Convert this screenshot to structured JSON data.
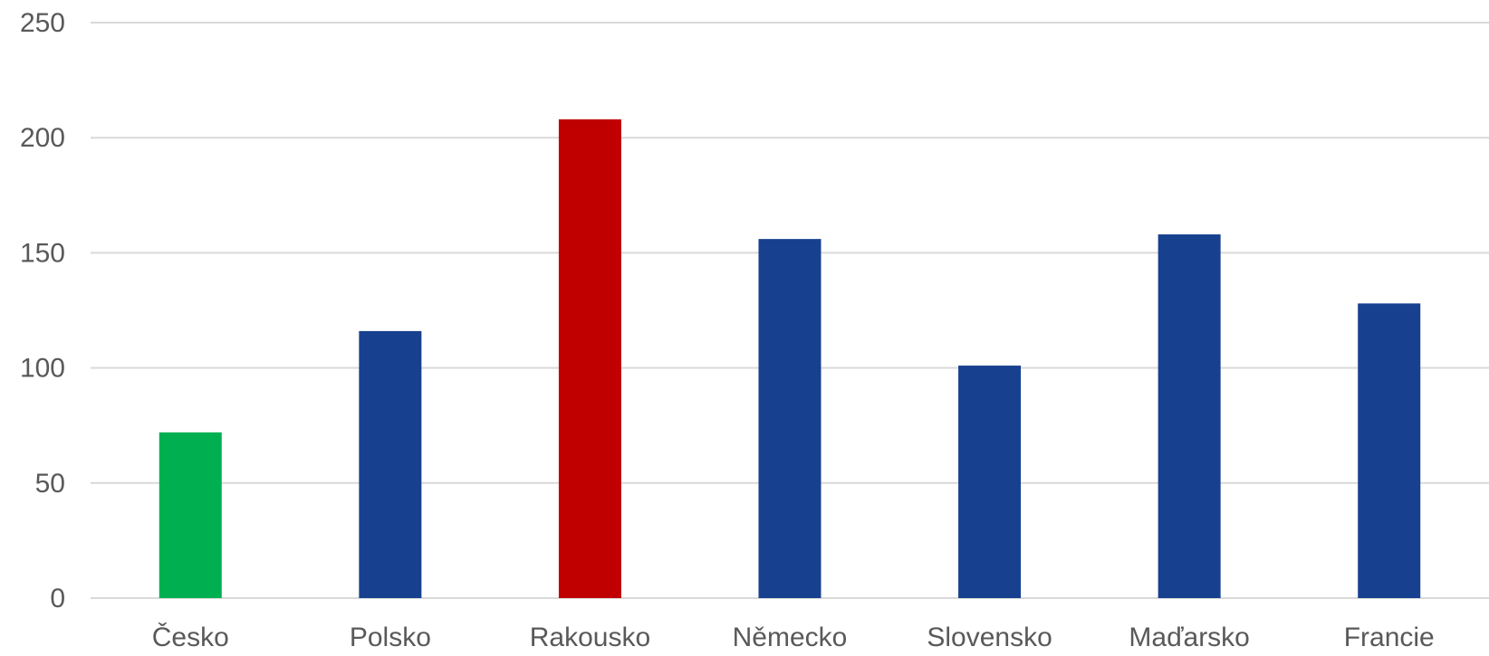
{
  "chart_data": {
    "type": "bar",
    "title": "",
    "xlabel": "",
    "ylabel": "",
    "categories": [
      "Česko",
      "Polsko",
      "Rakousko",
      "Německo",
      "Slovensko",
      "Maďarsko",
      "Francie"
    ],
    "values": [
      72,
      116,
      208,
      156,
      101,
      158,
      128
    ],
    "colors": [
      "#00b050",
      "#17408f",
      "#c00000",
      "#17408f",
      "#17408f",
      "#17408f",
      "#17408f"
    ],
    "ylim": [
      0,
      250
    ],
    "yticks": [
      0,
      50,
      100,
      150,
      200,
      250
    ],
    "grid": true,
    "legend": "none"
  }
}
